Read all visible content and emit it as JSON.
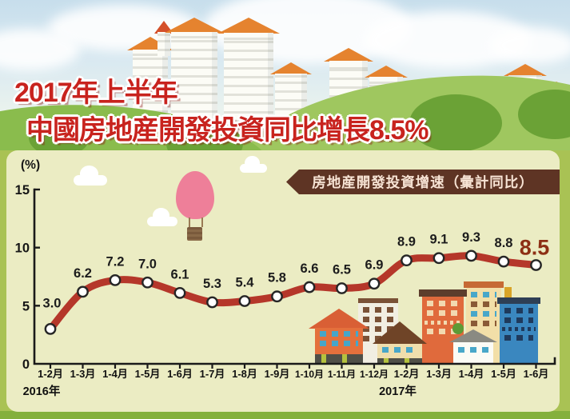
{
  "title": {
    "line1": "2017年上半年",
    "line2": "中國房地産開發投資同比增長8.5%"
  },
  "legend": {
    "label": "房地産開發投資增速（彙計同比）"
  },
  "chart_data": {
    "type": "line",
    "title": "房地産開發投資增速（彙計同比）",
    "unit_label": "(%)",
    "categories": [
      "1-2月",
      "1-3月",
      "1-4月",
      "1-5月",
      "1-6月",
      "1-7月",
      "1-8月",
      "1-9月",
      "1-10月",
      "1-11月",
      "1-12月",
      "1-2月",
      "1-3月",
      "1-4月",
      "1-5月",
      "1-6月"
    ],
    "values": [
      3.0,
      6.2,
      7.2,
      7.0,
      6.1,
      5.3,
      5.4,
      5.8,
      6.6,
      6.5,
      6.9,
      8.9,
      9.1,
      9.3,
      8.8,
      8.5
    ],
    "value_labels": [
      "3.0",
      "6.2",
      "7.2",
      "7.0",
      "6.1",
      "5.3",
      "5.4",
      "5.8",
      "6.6",
      "6.5",
      "6.9",
      "8.9",
      "9.1",
      "9.3",
      "8.8",
      "8.5"
    ],
    "ytick_labels": [
      "0",
      "5",
      "10",
      "15"
    ],
    "yticks": [
      0,
      5,
      10,
      15
    ],
    "ylim": [
      0,
      15
    ],
    "year_labels": [
      {
        "text": "2016年",
        "at_index": 0
      },
      {
        "text": "2017年",
        "at_index": 11
      }
    ],
    "legend_position": "top-right",
    "grid": false,
    "highlight_last_value": "8.5",
    "colors": {
      "line": "#b5372a",
      "marker_fill": "#ffffff",
      "marker_stroke": "#262626",
      "value_label": "#1c1c1c",
      "highlight_label": "#8d2f14",
      "axis": "#1a1a1a",
      "panel_bg": "#ebecc3",
      "frame_green": "#a9c254",
      "legend_bg": "#5e3424",
      "legend_text": "#f7e3d4",
      "title_red": "#c8231e"
    }
  },
  "decor": {
    "icons": [
      "hot-air-balloon-icon",
      "cloud-icon",
      "building-icon"
    ],
    "top_scene": "city-skyline-illustration",
    "bottom_scene": "village-buildings-illustration"
  }
}
